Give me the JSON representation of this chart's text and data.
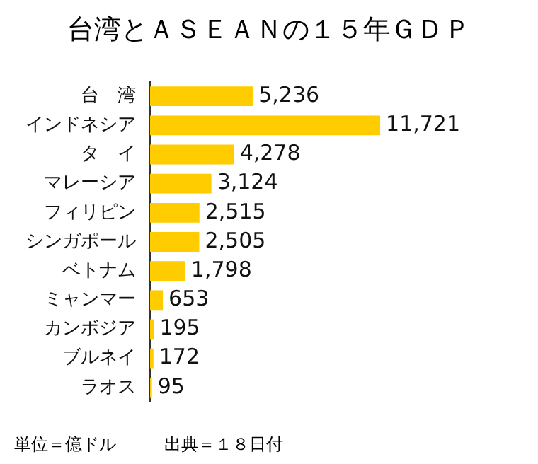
{
  "chart_data": {
    "type": "bar",
    "orientation": "horizontal",
    "title": "台湾とＡＳＥＡＮの１５年ＧＤＰ",
    "categories": [
      "台　湾",
      "インドネシア",
      "タ　イ",
      "マレーシア",
      "フィリピン",
      "シンガポール",
      "ベトナム",
      "ミャンマー",
      "カンボジア",
      "ブルネイ",
      "ラオス"
    ],
    "values": [
      5236,
      11721,
      4278,
      3124,
      2515,
      2505,
      1798,
      653,
      195,
      172,
      95
    ],
    "value_labels": [
      "5,236",
      "11,721",
      "4,278",
      "3,124",
      "2,515",
      "2,505",
      "1,798",
      "653",
      "195",
      "172",
      "95"
    ],
    "color": "#ffcc00",
    "grid": false,
    "annotations": [
      "単位＝億ドル",
      "出典＝１８日付"
    ]
  }
}
